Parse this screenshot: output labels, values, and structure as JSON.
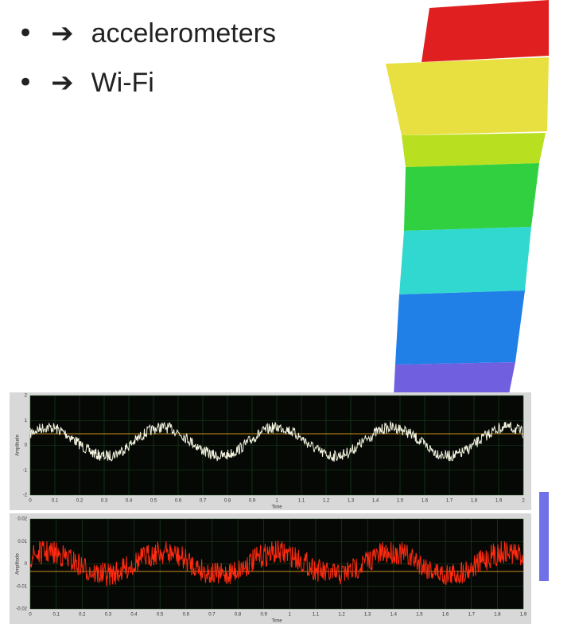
{
  "bullets": [
    {
      "symbol": "•",
      "arrow": "➔",
      "text": "accelerometers"
    },
    {
      "symbol": "•",
      "arrow": "➔",
      "text": "Wi-Fi"
    }
  ],
  "plots": [
    {
      "y_label": "Amplitude",
      "x_label": "Time",
      "y_ticks": [
        "2",
        "1",
        "0",
        "-1",
        "-2"
      ],
      "x_ticks": [
        "0",
        "0.1",
        "0.2",
        "0.3",
        "0.4",
        "0.5",
        "0.6",
        "0.7",
        "0.8",
        "0.9",
        "1",
        "1.1",
        "1.2",
        "1.3",
        "1.4",
        "1.5",
        "1.6",
        "1.7",
        "1.8",
        "1.9",
        "2"
      ]
    },
    {
      "y_label": "Amplitude",
      "x_label": "Time",
      "y_ticks": [
        "0.02",
        "0.01",
        "0",
        "-0.01",
        "-0.02"
      ],
      "x_ticks": [
        "0",
        "0.1",
        "0.2",
        "0.3",
        "0.4",
        "0.5",
        "0.6",
        "0.7",
        "0.8",
        "0.9",
        "1",
        "1.1",
        "1.2",
        "1.3",
        "1.4",
        "1.5",
        "1.6",
        "1.7",
        "1.8",
        "1.9"
      ]
    }
  ]
}
